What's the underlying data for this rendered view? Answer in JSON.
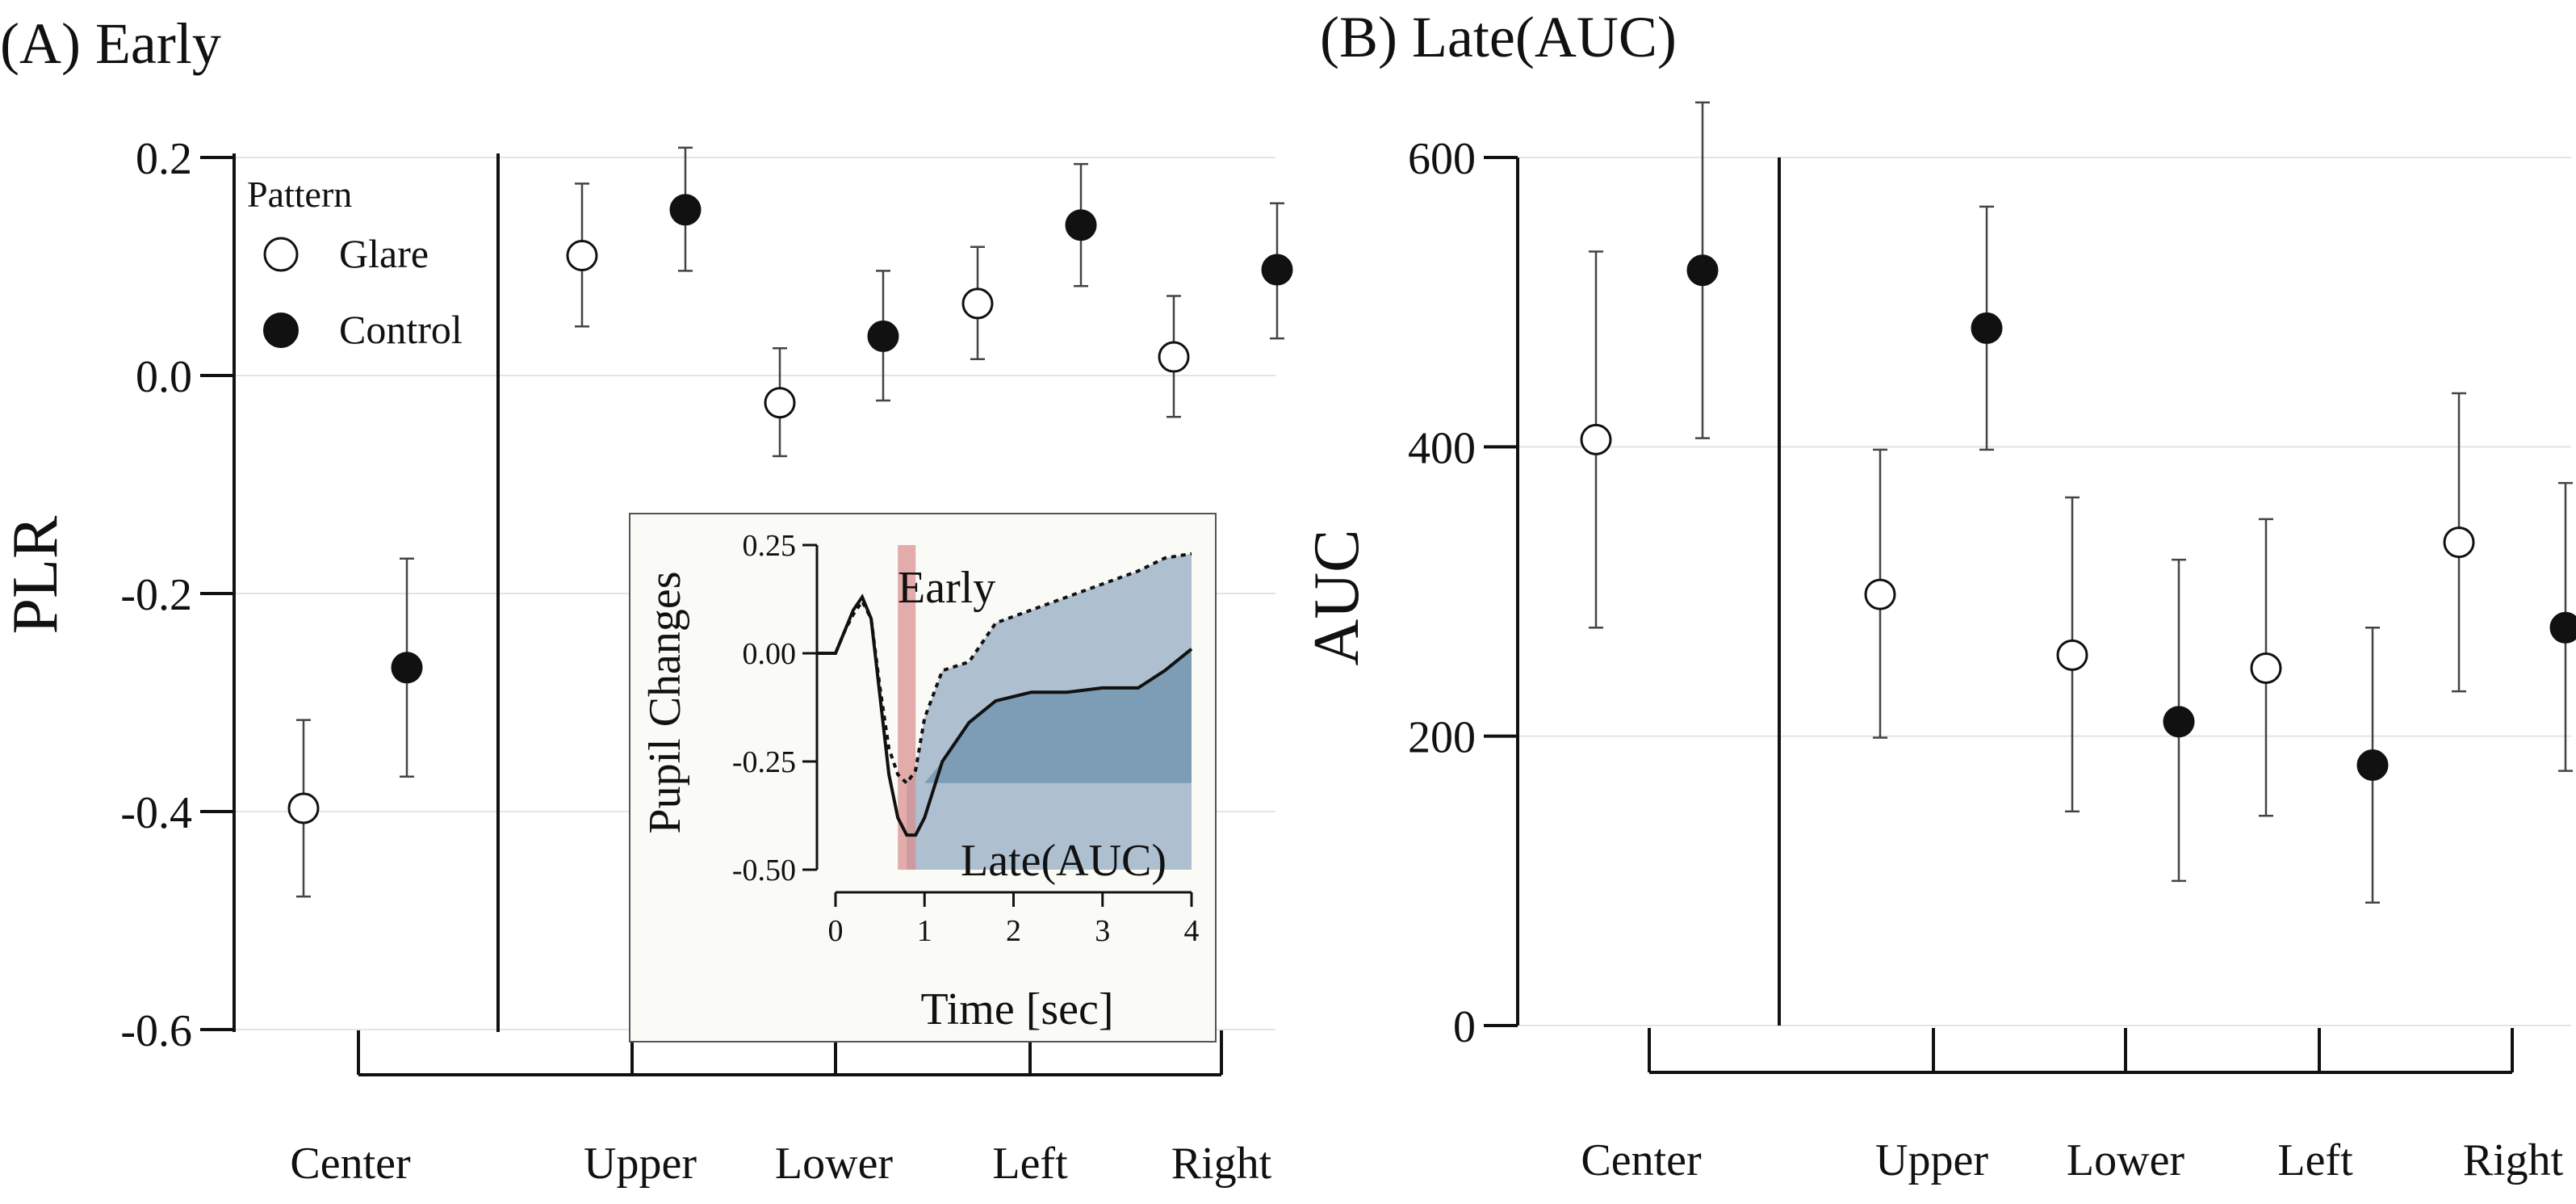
{
  "colors": {
    "glare_fill": "#ffffff",
    "control_fill": "#111111",
    "grid": "#e4e4e4",
    "early_band": "#d98a8a",
    "early_text": "#c9473f",
    "late_text": "#2f5e98",
    "area_light": "#aebfd0",
    "area_dark": "#7d9cb5",
    "inset_bg": "#fafaf7"
  },
  "chart_data": [
    {
      "type": "scatter",
      "panel_title": "(A) Early",
      "ylabel": "PLR",
      "xlabel": "",
      "categories": [
        "Center",
        "Upper",
        "Lower",
        "Left",
        "Right"
      ],
      "ylim": [
        -0.6,
        0.2
      ],
      "yticks": [
        "0.2",
        "0.0",
        "-0.2",
        "-0.4",
        "-0.6"
      ],
      "ytick_values": [
        0.2,
        0.0,
        -0.2,
        -0.4,
        -0.6
      ],
      "grid": true,
      "legend": {
        "title": "Pattern",
        "position": "top-left",
        "labels": [
          "Glare",
          "Control"
        ]
      },
      "series": [
        {
          "name": "Glare",
          "marker": "open-circle",
          "values": [
            -0.397,
            0.11,
            -0.025,
            0.066,
            0.017
          ],
          "ci_low": [
            -0.478,
            0.045,
            -0.074,
            0.015,
            -0.038
          ],
          "ci_high": [
            -0.316,
            0.176,
            0.025,
            0.118,
            0.073
          ]
        },
        {
          "name": "Control",
          "marker": "filled-circle",
          "values": [
            -0.268,
            0.152,
            0.036,
            0.138,
            0.097
          ],
          "ci_low": [
            -0.368,
            0.096,
            -0.023,
            0.082,
            0.034
          ],
          "ci_high": [
            -0.168,
            0.209,
            0.096,
            0.194,
            0.158
          ]
        }
      ]
    },
    {
      "type": "scatter",
      "panel_title": "(B) Late(AUC)",
      "ylabel": "AUC",
      "xlabel": "",
      "categories": [
        "Center",
        "Upper",
        "Lower",
        "Left",
        "Right"
      ],
      "ylim": [
        0,
        600
      ],
      "yticks": [
        "600",
        "400",
        "200",
        "0"
      ],
      "ytick_values": [
        600,
        400,
        200,
        0
      ],
      "grid": true,
      "series": [
        {
          "name": "Glare",
          "marker": "open-circle",
          "values": [
            405,
            298,
            256,
            247,
            334
          ],
          "ci_low": [
            275,
            199,
            148,
            145,
            231
          ],
          "ci_high": [
            535,
            398,
            365,
            350,
            437
          ]
        },
        {
          "name": "Control",
          "marker": "filled-circle",
          "values": [
            522,
            482,
            210,
            180,
            275
          ],
          "ci_low": [
            406,
            398,
            100,
            85,
            176
          ],
          "ci_high": [
            638,
            566,
            322,
            275,
            375
          ]
        }
      ]
    },
    {
      "type": "line",
      "role": "inset",
      "ylabel": "Pupil Changes",
      "xlabel": "Time [sec]",
      "xlim": [
        -0.25,
        4
      ],
      "ylim": [
        -0.5,
        0.25
      ],
      "xticks": [
        "0",
        "1",
        "2",
        "3",
        "4"
      ],
      "xtick_values": [
        0,
        1,
        2,
        3,
        4
      ],
      "yticks": [
        "0.25",
        "0.00",
        "-0.25",
        "-0.50"
      ],
      "ytick_values": [
        0.25,
        0.0,
        -0.25,
        -0.5
      ],
      "annotations": {
        "early": "Early",
        "late": "Late(AUC)"
      },
      "early_window": [
        0.7,
        0.9
      ],
      "baseline_fill_level": -0.3,
      "series": [
        {
          "style": "dotted",
          "x": [
            -0.2,
            0,
            0.1,
            0.2,
            0.3,
            0.4,
            0.5,
            0.6,
            0.7,
            0.8,
            0.9,
            1.0,
            1.2,
            1.5,
            1.8,
            2.2,
            2.6,
            3.0,
            3.4,
            3.7,
            4.0
          ],
          "y": [
            0.0,
            0.0,
            0.05,
            0.09,
            0.12,
            0.08,
            -0.08,
            -0.22,
            -0.28,
            -0.3,
            -0.27,
            -0.15,
            -0.04,
            -0.02,
            0.07,
            0.1,
            0.13,
            0.16,
            0.19,
            0.22,
            0.23
          ]
        },
        {
          "style": "solid",
          "x": [
            -0.2,
            0,
            0.1,
            0.2,
            0.3,
            0.4,
            0.5,
            0.6,
            0.7,
            0.8,
            0.9,
            1.0,
            1.2,
            1.5,
            1.8,
            2.2,
            2.6,
            3.0,
            3.4,
            3.7,
            4.0
          ],
          "y": [
            0.0,
            0.0,
            0.05,
            0.1,
            0.13,
            0.08,
            -0.1,
            -0.28,
            -0.38,
            -0.42,
            -0.42,
            -0.38,
            -0.25,
            -0.16,
            -0.11,
            -0.09,
            -0.09,
            -0.08,
            -0.08,
            -0.04,
            0.01
          ]
        }
      ]
    }
  ]
}
